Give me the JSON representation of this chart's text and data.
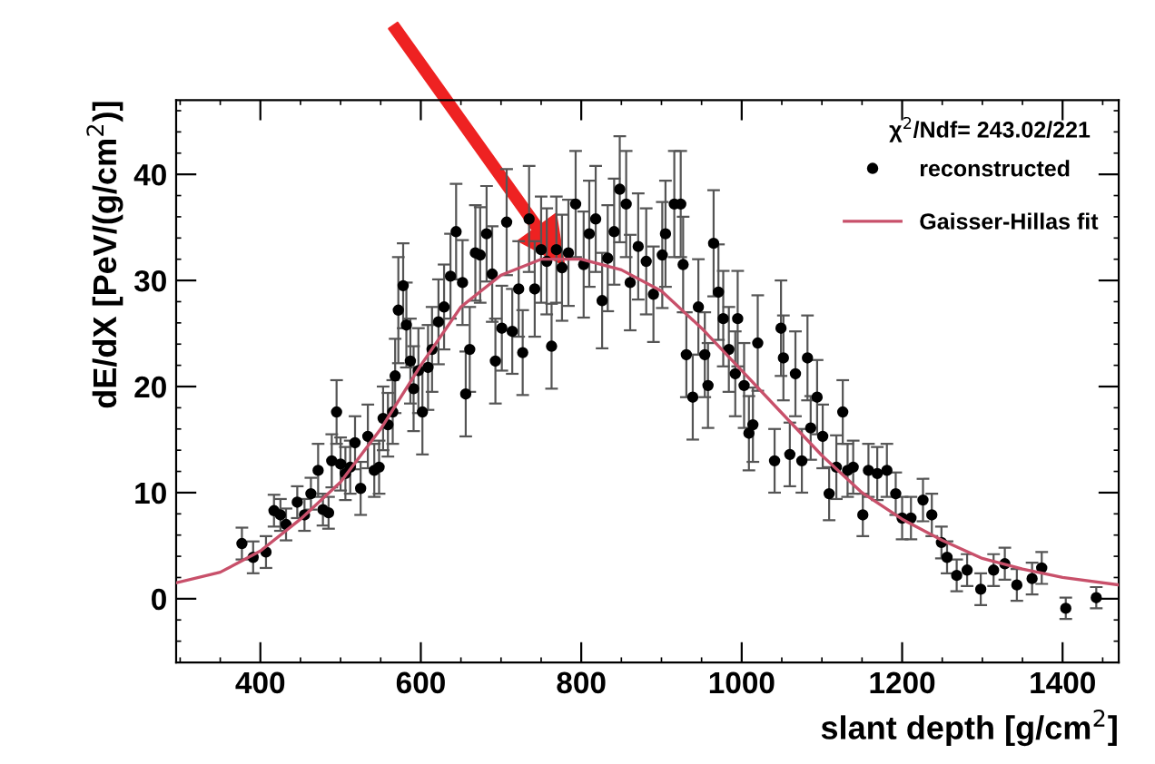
{
  "chart_data": {
    "type": "scatter",
    "xlabel": "slant depth [g/cm$^{2}$]",
    "ylabel": "dE/dX [PeV/(g/cm$^{2}$)]",
    "annotations": [
      "χ$^{2}$/Ndf= 243.02/221"
    ],
    "xlim": [
      295,
      1470
    ],
    "ylim": [
      -6,
      47
    ],
    "xticks": [
      400,
      600,
      800,
      1000,
      1200,
      1400
    ],
    "yticks": [
      0,
      10,
      20,
      30,
      40
    ],
    "grid": false,
    "legend": "top right",
    "marker": "circle",
    "series": [
      {
        "name": "reconstructed",
        "color": "#000000",
        "x": [
          377,
          391,
          407,
          417,
          425,
          432,
          446,
          455,
          463,
          472,
          478,
          485,
          489,
          495,
          500,
          506,
          512,
          518,
          525,
          534,
          542,
          548,
          553,
          559,
          565,
          568,
          572,
          578,
          582,
          587,
          591,
          597,
          602,
          609,
          614,
          622,
          629,
          637,
          644,
          652,
          656,
          661,
          668,
          674,
          682,
          689,
          693,
          701,
          707,
          714,
          722,
          727,
          735,
          742,
          750,
          757,
          763,
          769,
          776,
          784,
          793,
          803,
          810,
          818,
          826,
          833,
          841,
          848,
          856,
          861,
          871,
          881,
          890,
          901,
          905,
          916,
          924,
          927,
          931,
          939,
          946,
          954,
          958,
          965,
          971,
          977,
          984,
          992,
          995,
          1003,
          1009,
          1014,
          1020,
          1041,
          1049,
          1052,
          1060,
          1067,
          1075,
          1082,
          1086,
          1094,
          1101,
          1109,
          1118,
          1126,
          1132,
          1139,
          1151,
          1158,
          1169,
          1181,
          1192,
          1200,
          1211,
          1226,
          1237,
          1249,
          1256,
          1268,
          1281,
          1298,
          1314,
          1328,
          1343,
          1362,
          1374,
          1404,
          1442
        ],
        "values": [
          5.2,
          3.9,
          4.4,
          8.3,
          7.9,
          7.0,
          9.1,
          7.9,
          9.9,
          12.1,
          8.4,
          8.1,
          13.0,
          17.6,
          12.7,
          11.8,
          12.4,
          14.7,
          10.4,
          15.3,
          12.1,
          12.4,
          17.0,
          16.4,
          17.6,
          21.0,
          27.2,
          29.5,
          25.8,
          22.4,
          19.8,
          21.5,
          17.6,
          21.8,
          23.5,
          26.1,
          27.5,
          30.4,
          34.6,
          29.8,
          19.3,
          23.5,
          32.6,
          32.4,
          34.4,
          30.6,
          22.4,
          25.5,
          35.5,
          25.2,
          29.2,
          23.2,
          35.8,
          29.2,
          32.9,
          31.8,
          23.8,
          32.9,
          31.2,
          32.6,
          37.2,
          31.5,
          34.4,
          35.8,
          28.1,
          32.1,
          34.6,
          38.6,
          37.2,
          29.8,
          33.2,
          31.8,
          28.7,
          32.4,
          34.4,
          37.2,
          37.2,
          31.5,
          23.0,
          19.0,
          27.5,
          23.0,
          20.1,
          33.5,
          28.9,
          26.4,
          23.5,
          21.2,
          26.4,
          20.1,
          15.6,
          16.4,
          24.1,
          13.0,
          25.5,
          22.7,
          13.6,
          21.2,
          13.0,
          22.7,
          16.1,
          19.0,
          15.3,
          9.9,
          12.4,
          17.6,
          12.1,
          12.4,
          7.9,
          12.1,
          11.8,
          12.1,
          9.9,
          7.6,
          7.6,
          9.3,
          7.9,
          5.3,
          3.9,
          2.2,
          2.7,
          0.9,
          2.7,
          3.3,
          1.3,
          1.9,
          2.9,
          -0.9,
          0.1
        ],
        "errors": [
          1.5,
          1.5,
          1.5,
          1.5,
          1.5,
          1.5,
          1.5,
          1.5,
          1.5,
          2.5,
          1.5,
          1.5,
          2.5,
          3,
          2.5,
          2.5,
          2.5,
          2.5,
          2.5,
          3,
          2.5,
          2.5,
          3,
          3,
          3,
          3.5,
          5,
          4,
          4,
          4,
          4,
          4,
          4,
          4,
          4,
          4,
          4,
          4,
          4.5,
          4,
          4,
          4,
          4.5,
          4.5,
          4.5,
          4.5,
          4,
          4,
          5,
          4,
          4.5,
          4,
          5,
          4.5,
          5,
          5,
          4,
          5,
          5,
          5,
          5,
          5,
          5,
          5,
          4.5,
          5,
          5,
          5,
          5,
          4.5,
          5,
          5,
          4.5,
          5,
          5,
          5,
          5,
          4.5,
          4,
          4,
          4.5,
          4,
          4,
          5,
          4.5,
          4.5,
          4,
          4,
          4.5,
          4,
          3.5,
          3.5,
          4.5,
          3,
          4.5,
          4,
          3,
          4,
          3,
          4,
          3,
          3.5,
          3,
          2.5,
          3,
          3,
          2.5,
          2.5,
          2,
          2.5,
          2.5,
          2.5,
          2,
          2,
          2,
          2,
          2,
          1.5,
          1.5,
          1.5,
          1.5,
          1.5,
          1.5,
          1.5,
          1.5,
          1.5,
          1.5,
          1,
          1
        ]
      },
      {
        "name": "Gaisser-Hillas fit",
        "type": "line",
        "color": "#c8506a",
        "marker": "none",
        "line_style": "solid",
        "x": [
          295,
          350,
          400,
          450,
          500,
          550,
          600,
          650,
          700,
          750,
          800,
          850,
          900,
          950,
          1000,
          1050,
          1100,
          1150,
          1200,
          1250,
          1300,
          1350,
          1400,
          1470
        ],
        "values": [
          1.5,
          2.5,
          4.5,
          7.5,
          11,
          16,
          22,
          27.5,
          30.5,
          32,
          32,
          31,
          29,
          25.5,
          21.5,
          17.5,
          13.5,
          10,
          7.5,
          5.5,
          3.8,
          2.8,
          2,
          1.3
        ]
      }
    ]
  }
}
